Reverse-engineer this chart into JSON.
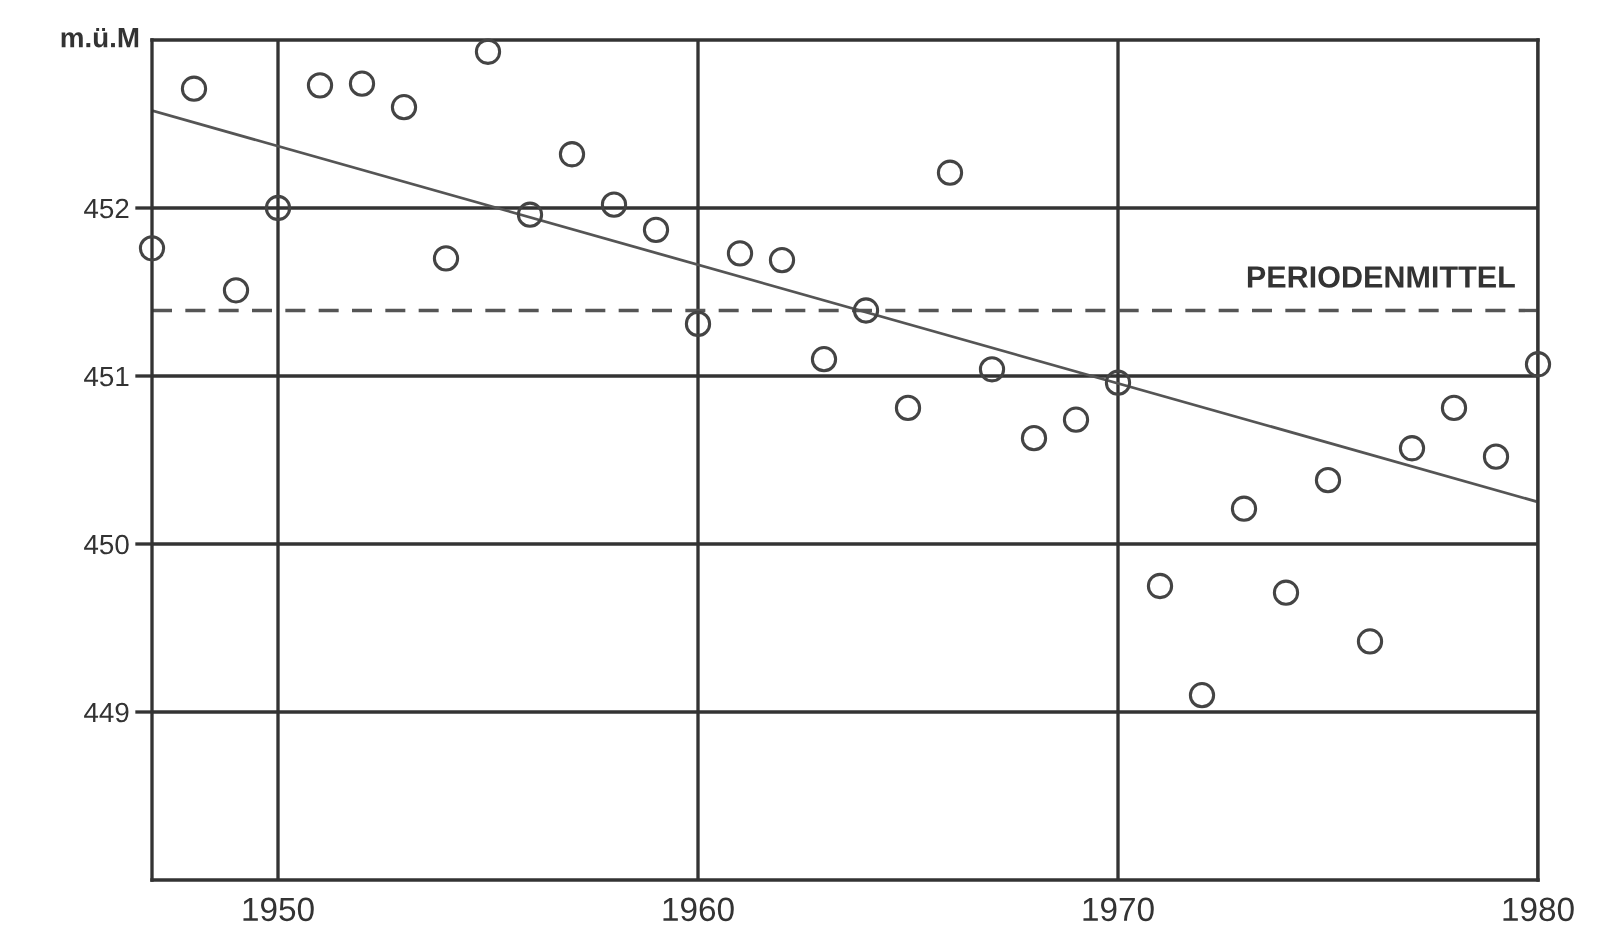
{
  "chart_data": {
    "type": "scatter",
    "ylabel": "m.ü.M",
    "x": [
      1947,
      1948,
      1949,
      1950,
      1951,
      1952,
      1953,
      1954,
      1955,
      1956,
      1957,
      1958,
      1959,
      1960,
      1961,
      1962,
      1963,
      1964,
      1965,
      1966,
      1967,
      1968,
      1969,
      1970,
      1971,
      1972,
      1973,
      1974,
      1975,
      1976,
      1977,
      1978,
      1979,
      1980
    ],
    "series": [
      {
        "color": "#444444",
        "marker": "circle",
        "values": [
          451.76,
          452.71,
          451.51,
          452.0,
          452.73,
          452.74,
          452.6,
          451.7,
          452.93,
          451.96,
          452.32,
          452.02,
          451.87,
          451.31,
          451.73,
          451.69,
          451.1,
          451.39,
          450.81,
          452.21,
          451.04,
          450.63,
          450.74,
          450.96,
          449.75,
          449.1,
          450.21,
          449.71,
          450.38,
          449.42,
          450.57,
          450.81,
          450.52,
          451.07
        ]
      },
      {
        "type": "line",
        "color": "#555555",
        "x": [
          1947,
          1980
        ],
        "values": [
          452.58,
          450.25
        ],
        "line_style": "solid"
      }
    ],
    "ref_lines": [
      {
        "axis": "y",
        "value": 451.39,
        "label": "PERIODENMITTEL",
        "color": "#555555",
        "line_style": "dashed"
      }
    ],
    "xlim": [
      1947,
      1980
    ],
    "xticks": [
      1950,
      1960,
      1970,
      1980
    ],
    "ylim": [
      448,
      453
    ],
    "yticks": [
      449,
      450,
      451,
      452
    ],
    "grid": true
  }
}
